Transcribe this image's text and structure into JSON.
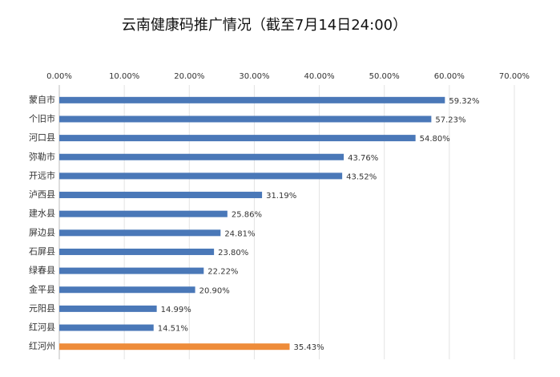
{
  "chart_data": {
    "type": "bar",
    "orientation": "horizontal",
    "title": "云南健康码推广情况（截至7月14日24:00）",
    "categories": [
      "蒙自市",
      "个旧市",
      "河口县",
      "弥勒市",
      "开远市",
      "泸西县",
      "建水县",
      "屏边县",
      "石屏县",
      "绿春县",
      "金平县",
      "元阳县",
      "红河县",
      "红河州"
    ],
    "values": [
      59.32,
      57.23,
      54.8,
      43.76,
      43.52,
      31.19,
      25.86,
      24.81,
      23.8,
      22.22,
      20.9,
      14.99,
      14.51,
      35.43
    ],
    "value_labels": [
      "59.32%",
      "57.23%",
      "54.80%",
      "43.76%",
      "43.52%",
      "31.19%",
      "25.86%",
      "24.81%",
      "23.80%",
      "22.22%",
      "20.90%",
      "14.99%",
      "14.51%",
      "35.43%"
    ],
    "colors": [
      "#4a78b8",
      "#4a78b8",
      "#4a78b8",
      "#4a78b8",
      "#4a78b8",
      "#4a78b8",
      "#4a78b8",
      "#4a78b8",
      "#4a78b8",
      "#4a78b8",
      "#4a78b8",
      "#4a78b8",
      "#4a78b8",
      "#ee8c3a"
    ],
    "xlim": [
      0,
      70
    ],
    "xticks": [
      {
        "value": 0,
        "label": "0.00%"
      },
      {
        "value": 10,
        "label": "10.00%"
      },
      {
        "value": 20,
        "label": "20.00%"
      },
      {
        "value": 30,
        "label": "30.00%"
      },
      {
        "value": 40,
        "label": "40.00%"
      },
      {
        "value": 50,
        "label": "50.00%"
      },
      {
        "value": 60,
        "label": "60.00%"
      },
      {
        "value": 70,
        "label": "70.00%"
      }
    ],
    "grid": true
  }
}
